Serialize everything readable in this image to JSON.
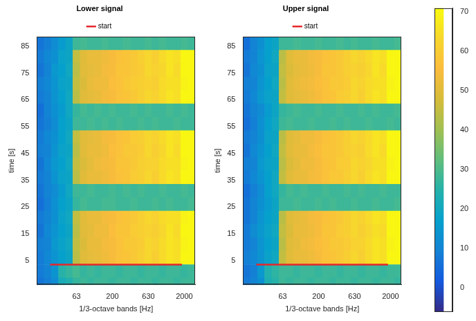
{
  "chart_data": [
    {
      "type": "heatmap",
      "title": "Lower signal",
      "x_label": "1/3-octave bands [Hz]",
      "y_label": "time [s]",
      "categories": [
        null,
        null,
        null,
        null,
        null,
        "63",
        null,
        null,
        null,
        null,
        "200",
        null,
        null,
        null,
        null,
        "630",
        null,
        null,
        null,
        null,
        "2000",
        null
      ],
      "ylim": [
        -4,
        88.5
      ],
      "yticks": [
        5,
        15,
        25,
        35,
        45,
        55,
        65,
        75,
        85
      ],
      "grid": false,
      "legend": "top",
      "start_line": {
        "name": "start",
        "y": 3.5,
        "color": "#e6262b"
      },
      "time_edges": [
        -4,
        -1.5,
        3.5,
        8.5,
        13.5,
        18.5,
        23.5,
        28.5,
        33.5,
        38.5,
        43.5,
        48.5,
        53.5,
        58.5,
        63.5,
        68.5,
        73.5,
        78.5,
        83.5,
        88.5
      ],
      "cells": [
        [
          7,
          9,
          12,
          22,
          24,
          27,
          28,
          27,
          28,
          28,
          27,
          28,
          28,
          27,
          28,
          28,
          27,
          28,
          28,
          27,
          28,
          28
        ],
        [
          8,
          10,
          14,
          25,
          27,
          29,
          27,
          28,
          27,
          28,
          28,
          27,
          28,
          28,
          27,
          28,
          28,
          27,
          28,
          28,
          27,
          28
        ],
        [
          8,
          11,
          14,
          17,
          19,
          44,
          50,
          51,
          52,
          53,
          55,
          57,
          58,
          59,
          61,
          63,
          61,
          64,
          66,
          65,
          70,
          70
        ],
        [
          9,
          10,
          15,
          18,
          20,
          45,
          49,
          52,
          52,
          54,
          55,
          57,
          59,
          59,
          60,
          63,
          62,
          64,
          66,
          65,
          69,
          70
        ],
        [
          7,
          11,
          14,
          17,
          19,
          44,
          50,
          51,
          53,
          53,
          56,
          58,
          58,
          60,
          61,
          62,
          61,
          63,
          66,
          64,
          70,
          70
        ],
        [
          8,
          10,
          13,
          18,
          20,
          45,
          50,
          52,
          52,
          54,
          55,
          57,
          58,
          59,
          61,
          63,
          62,
          64,
          65,
          65,
          69,
          70
        ],
        [
          6,
          9,
          13,
          17,
          19,
          27,
          29,
          28,
          28,
          29,
          29,
          28,
          28,
          29,
          28,
          28,
          29,
          28,
          29,
          28,
          28,
          29
        ],
        [
          7,
          10,
          12,
          16,
          20,
          28,
          28,
          29,
          28,
          28,
          29,
          28,
          29,
          28,
          29,
          28,
          28,
          29,
          28,
          28,
          29,
          28
        ],
        [
          8,
          10,
          14,
          18,
          19,
          44,
          50,
          52,
          52,
          53,
          55,
          57,
          58,
          60,
          61,
          63,
          61,
          64,
          66,
          65,
          70,
          70
        ],
        [
          7,
          11,
          15,
          17,
          20,
          45,
          49,
          51,
          53,
          54,
          55,
          58,
          58,
          59,
          61,
          62,
          62,
          64,
          65,
          65,
          69,
          70
        ],
        [
          9,
          10,
          14,
          18,
          19,
          44,
          50,
          52,
          52,
          53,
          56,
          57,
          59,
          59,
          60,
          63,
          61,
          63,
          66,
          64,
          70,
          70
        ],
        [
          8,
          11,
          13,
          17,
          20,
          45,
          50,
          51,
          52,
          54,
          55,
          57,
          58,
          60,
          61,
          63,
          62,
          64,
          66,
          65,
          70,
          70
        ],
        [
          7,
          9,
          12,
          17,
          19,
          28,
          28,
          29,
          28,
          29,
          28,
          29,
          28,
          28,
          29,
          28,
          29,
          28,
          28,
          29,
          28,
          28
        ],
        [
          6,
          10,
          13,
          16,
          20,
          27,
          29,
          28,
          29,
          28,
          29,
          28,
          28,
          29,
          28,
          29,
          28,
          28,
          29,
          28,
          29,
          28
        ],
        [
          8,
          10,
          14,
          17,
          20,
          44,
          50,
          51,
          52,
          54,
          55,
          57,
          58,
          59,
          61,
          63,
          62,
          64,
          66,
          65,
          70,
          70
        ],
        [
          9,
          11,
          14,
          18,
          19,
          45,
          49,
          52,
          53,
          53,
          56,
          57,
          59,
          60,
          61,
          62,
          61,
          64,
          65,
          65,
          69,
          70
        ],
        [
          7,
          10,
          15,
          17,
          20,
          44,
          50,
          51,
          52,
          54,
          55,
          58,
          58,
          59,
          60,
          63,
          62,
          63,
          66,
          64,
          70,
          70
        ],
        [
          8,
          11,
          13,
          18,
          19,
          45,
          50,
          52,
          52,
          53,
          55,
          57,
          58,
          59,
          61,
          63,
          61,
          64,
          66,
          65,
          70,
          70
        ],
        [
          7,
          9,
          12,
          16,
          19,
          28,
          29,
          28,
          28,
          29,
          28,
          28,
          29,
          28,
          28,
          29,
          28,
          29,
          28,
          28,
          29,
          28
        ]
      ]
    },
    {
      "type": "heatmap",
      "title": "Upper signal",
      "x_label": "1/3-octave bands [Hz]",
      "y_label": "time [s]",
      "categories": [
        null,
        null,
        null,
        null,
        null,
        "63",
        null,
        null,
        null,
        null,
        "200",
        null,
        null,
        null,
        null,
        "630",
        null,
        null,
        null,
        null,
        "2000",
        null
      ],
      "ylim": [
        -4,
        88.5
      ],
      "yticks": [
        5,
        15,
        25,
        35,
        45,
        55,
        65,
        75,
        85
      ],
      "grid": false,
      "legend": "top",
      "start_line": {
        "name": "start",
        "y": 3.5,
        "color": "#e6262b"
      },
      "time_edges": [
        -4,
        -1.5,
        3.5,
        8.5,
        13.5,
        18.5,
        23.5,
        28.5,
        33.5,
        38.5,
        43.5,
        48.5,
        53.5,
        58.5,
        63.5,
        68.5,
        73.5,
        78.5,
        83.5,
        88.5
      ],
      "cells": [
        [
          8,
          10,
          13,
          23,
          25,
          28,
          27,
          28,
          28,
          27,
          28,
          28,
          27,
          28,
          28,
          27,
          28,
          28,
          27,
          28,
          28,
          27
        ],
        [
          7,
          9,
          15,
          24,
          26,
          28,
          28,
          27,
          28,
          28,
          27,
          28,
          28,
          27,
          28,
          28,
          27,
          28,
          28,
          27,
          28,
          28
        ],
        [
          9,
          11,
          14,
          18,
          20,
          45,
          50,
          52,
          52,
          53,
          55,
          57,
          58,
          59,
          61,
          63,
          61,
          64,
          66,
          65,
          70,
          70
        ],
        [
          8,
          10,
          14,
          17,
          19,
          44,
          50,
          51,
          53,
          54,
          56,
          57,
          59,
          59,
          60,
          62,
          62,
          64,
          66,
          65,
          69,
          70
        ],
        [
          8,
          12,
          15,
          18,
          20,
          45,
          49,
          52,
          52,
          53,
          55,
          58,
          58,
          60,
          61,
          63,
          61,
          63,
          65,
          64,
          70,
          70
        ],
        [
          7,
          10,
          14,
          17,
          19,
          44,
          50,
          51,
          52,
          54,
          55,
          57,
          58,
          59,
          61,
          63,
          62,
          64,
          66,
          65,
          70,
          70
        ],
        [
          7,
          10,
          13,
          16,
          19,
          28,
          28,
          29,
          28,
          28,
          29,
          28,
          29,
          28,
          28,
          29,
          28,
          28,
          29,
          28,
          28,
          29
        ],
        [
          6,
          9,
          12,
          17,
          20,
          27,
          29,
          28,
          29,
          28,
          28,
          29,
          28,
          28,
          29,
          28,
          29,
          28,
          28,
          29,
          28,
          28
        ],
        [
          8,
          11,
          14,
          17,
          20,
          45,
          50,
          52,
          52,
          54,
          55,
          57,
          59,
          59,
          61,
          63,
          61,
          64,
          66,
          65,
          70,
          70
        ],
        [
          9,
          10,
          15,
          18,
          19,
          44,
          49,
          51,
          53,
          53,
          55,
          57,
          58,
          60,
          60,
          63,
          62,
          63,
          65,
          65,
          69,
          70
        ],
        [
          7,
          11,
          14,
          17,
          20,
          45,
          50,
          52,
          52,
          54,
          56,
          58,
          58,
          59,
          61,
          62,
          61,
          64,
          66,
          64,
          70,
          70
        ],
        [
          8,
          10,
          13,
          18,
          19,
          44,
          50,
          51,
          53,
          53,
          55,
          57,
          58,
          59,
          61,
          63,
          62,
          64,
          66,
          65,
          70,
          70
        ],
        [
          6,
          9,
          13,
          17,
          20,
          28,
          29,
          28,
          28,
          29,
          28,
          28,
          29,
          28,
          29,
          28,
          28,
          29,
          28,
          28,
          29,
          28
        ],
        [
          7,
          10,
          12,
          16,
          19,
          27,
          28,
          29,
          28,
          28,
          29,
          28,
          28,
          29,
          28,
          28,
          29,
          28,
          29,
          28,
          28,
          29
        ],
        [
          8,
          11,
          15,
          18,
          19,
          45,
          50,
          51,
          52,
          53,
          55,
          57,
          58,
          60,
          61,
          63,
          61,
          64,
          66,
          65,
          70,
          70
        ],
        [
          9,
          10,
          14,
          17,
          20,
          44,
          50,
          52,
          53,
          54,
          56,
          57,
          59,
          59,
          60,
          63,
          62,
          64,
          65,
          65,
          69,
          70
        ],
        [
          7,
          11,
          13,
          18,
          19,
          45,
          49,
          51,
          52,
          53,
          55,
          58,
          58,
          59,
          61,
          62,
          61,
          63,
          66,
          64,
          70,
          70
        ],
        [
          8,
          10,
          14,
          17,
          20,
          44,
          50,
          52,
          52,
          54,
          55,
          57,
          58,
          59,
          61,
          63,
          62,
          64,
          66,
          65,
          70,
          70
        ],
        [
          6,
          10,
          13,
          17,
          19,
          28,
          28,
          29,
          28,
          28,
          29,
          28,
          28,
          29,
          28,
          29,
          28,
          28,
          29,
          28,
          28,
          29
        ]
      ]
    }
  ],
  "colorbar": {
    "range": [
      -6,
      71
    ],
    "ticks": [
      0,
      10,
      20,
      30,
      40,
      50,
      60,
      70
    ]
  }
}
